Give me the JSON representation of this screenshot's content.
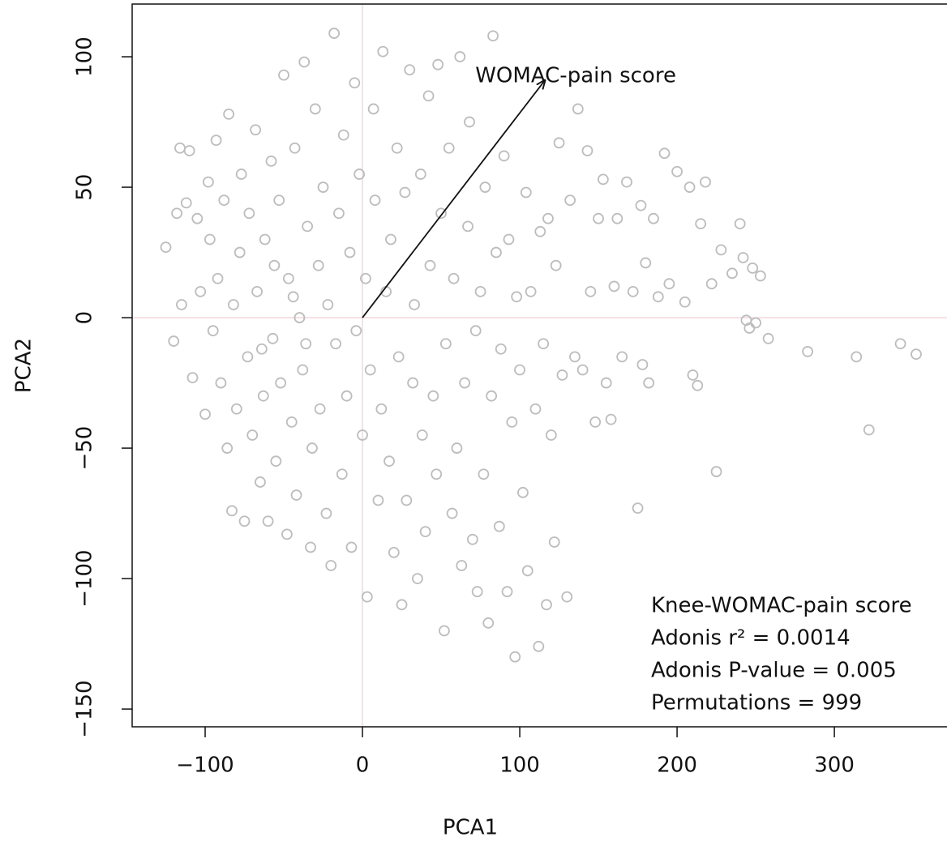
{
  "chart_data": {
    "type": "scatter",
    "xlabel": "PCA1",
    "ylabel": "PCA2",
    "xlim": [
      -146.4,
      371.6
    ],
    "ylim": [
      -156.8,
      120.2
    ],
    "xticks": [
      {
        "value": -100,
        "label": "−100"
      },
      0,
      100,
      200,
      300
    ],
    "yticks": [
      {
        "value": -150,
        "label": "−150"
      },
      {
        "value": -100,
        "label": "−100"
      },
      {
        "value": -50,
        "label": "−50"
      },
      0,
      50,
      100
    ],
    "color": "#bdbdbd",
    "x": [
      -125,
      -120,
      -118,
      -116,
      -115,
      -112,
      -110,
      -108,
      -105,
      -103,
      -100,
      -98,
      -97,
      -95,
      -93,
      -92,
      -90,
      -88,
      -86,
      -85,
      -83,
      -82,
      -80,
      -78,
      -77,
      -75,
      -73,
      -72,
      -70,
      -68,
      -67,
      -65,
      -63,
      -62,
      -60,
      -58,
      -57,
      -55,
      -53,
      -52,
      -50,
      -48,
      -47,
      -45,
      -43,
      -42,
      -40,
      -38,
      -37,
      -35,
      -33,
      -32,
      -30,
      -28,
      -27,
      -25,
      -23,
      -22,
      -20,
      -18,
      -17,
      -15,
      -13,
      -12,
      -10,
      -8,
      -7,
      -5,
      -4,
      -2,
      0,
      2,
      3,
      5,
      7,
      8,
      10,
      12,
      13,
      15,
      17,
      18,
      20,
      22,
      23,
      25,
      27,
      28,
      30,
      32,
      33,
      35,
      37,
      38,
      40,
      42,
      43,
      45,
      47,
      48,
      50,
      52,
      53,
      55,
      57,
      58,
      60,
      62,
      63,
      65,
      67,
      68,
      70,
      72,
      73,
      75,
      77,
      78,
      80,
      82,
      83,
      85,
      87,
      88,
      90,
      92,
      93,
      95,
      97,
      98,
      100,
      102,
      104,
      105,
      107,
      110,
      112,
      113,
      115,
      117,
      118,
      120,
      122,
      123,
      125,
      127,
      130,
      132,
      135,
      137,
      140,
      143,
      145,
      148,
      150,
      153,
      155,
      158,
      160,
      162,
      165,
      168,
      172,
      175,
      177,
      178,
      180,
      182,
      185,
      188,
      192,
      195,
      200,
      205,
      208,
      210,
      213,
      215,
      218,
      222,
      225,
      228,
      235,
      240,
      242,
      244,
      246,
      248,
      250,
      253,
      258,
      283,
      314,
      322,
      342,
      352,
      -36,
      -44,
      -56,
      -64
    ],
    "y": [
      27,
      -9,
      40,
      65,
      5,
      44,
      64,
      -23,
      38,
      10,
      -37,
      52,
      30,
      -5,
      68,
      15,
      -25,
      45,
      -50,
      78,
      -74,
      5,
      -35,
      25,
      55,
      -78,
      -15,
      40,
      -45,
      72,
      10,
      -63,
      -30,
      30,
      -78,
      60,
      -8,
      -55,
      45,
      -25,
      93,
      -83,
      15,
      -40,
      65,
      -68,
      0,
      -20,
      98,
      35,
      -88,
      -50,
      80,
      20,
      -35,
      50,
      -75,
      5,
      -95,
      109,
      -10,
      40,
      -60,
      70,
      -30,
      25,
      -88,
      90,
      -5,
      55,
      -45,
      15,
      -107,
      -20,
      80,
      45,
      -70,
      -35,
      102,
      10,
      -55,
      30,
      -90,
      65,
      -15,
      -110,
      48,
      -70,
      95,
      -25,
      5,
      -100,
      55,
      -45,
      -82,
      85,
      20,
      -30,
      -60,
      97,
      40,
      -120,
      -10,
      65,
      -75,
      15,
      -50,
      100,
      -95,
      -25,
      35,
      75,
      -85,
      -5,
      -105,
      10,
      -60,
      50,
      -117,
      -30,
      108,
      25,
      -80,
      -12,
      62,
      -105,
      30,
      -40,
      -130,
      8,
      -20,
      -67,
      48,
      -97,
      10,
      -35,
      -126,
      33,
      -10,
      -110,
      38,
      -45,
      -86,
      20,
      67,
      -22,
      -107,
      45,
      -15,
      80,
      -20,
      64,
      10,
      -40,
      38,
      53,
      -25,
      -39,
      12,
      38,
      -15,
      52,
      10,
      -73,
      43,
      -18,
      21,
      -25,
      38,
      8,
      63,
      13,
      56,
      6,
      50,
      -22,
      -26,
      36,
      52,
      13,
      -59,
      26,
      17,
      36,
      23,
      -1,
      -4,
      19,
      -2,
      16,
      -8,
      -13,
      -15,
      -43,
      -10,
      -14,
      -10,
      8,
      20,
      -12
    ],
    "arrow": {
      "label": "WOMAC-pain score",
      "x": [
        0,
        116
      ],
      "y": [
        0,
        91
      ]
    },
    "annotations": [
      "Knee-WOMAC-pain score",
      "Adonis r² = 0.0014",
      "Adonis P-value = 0.005",
      "Permutations = 999"
    ]
  }
}
